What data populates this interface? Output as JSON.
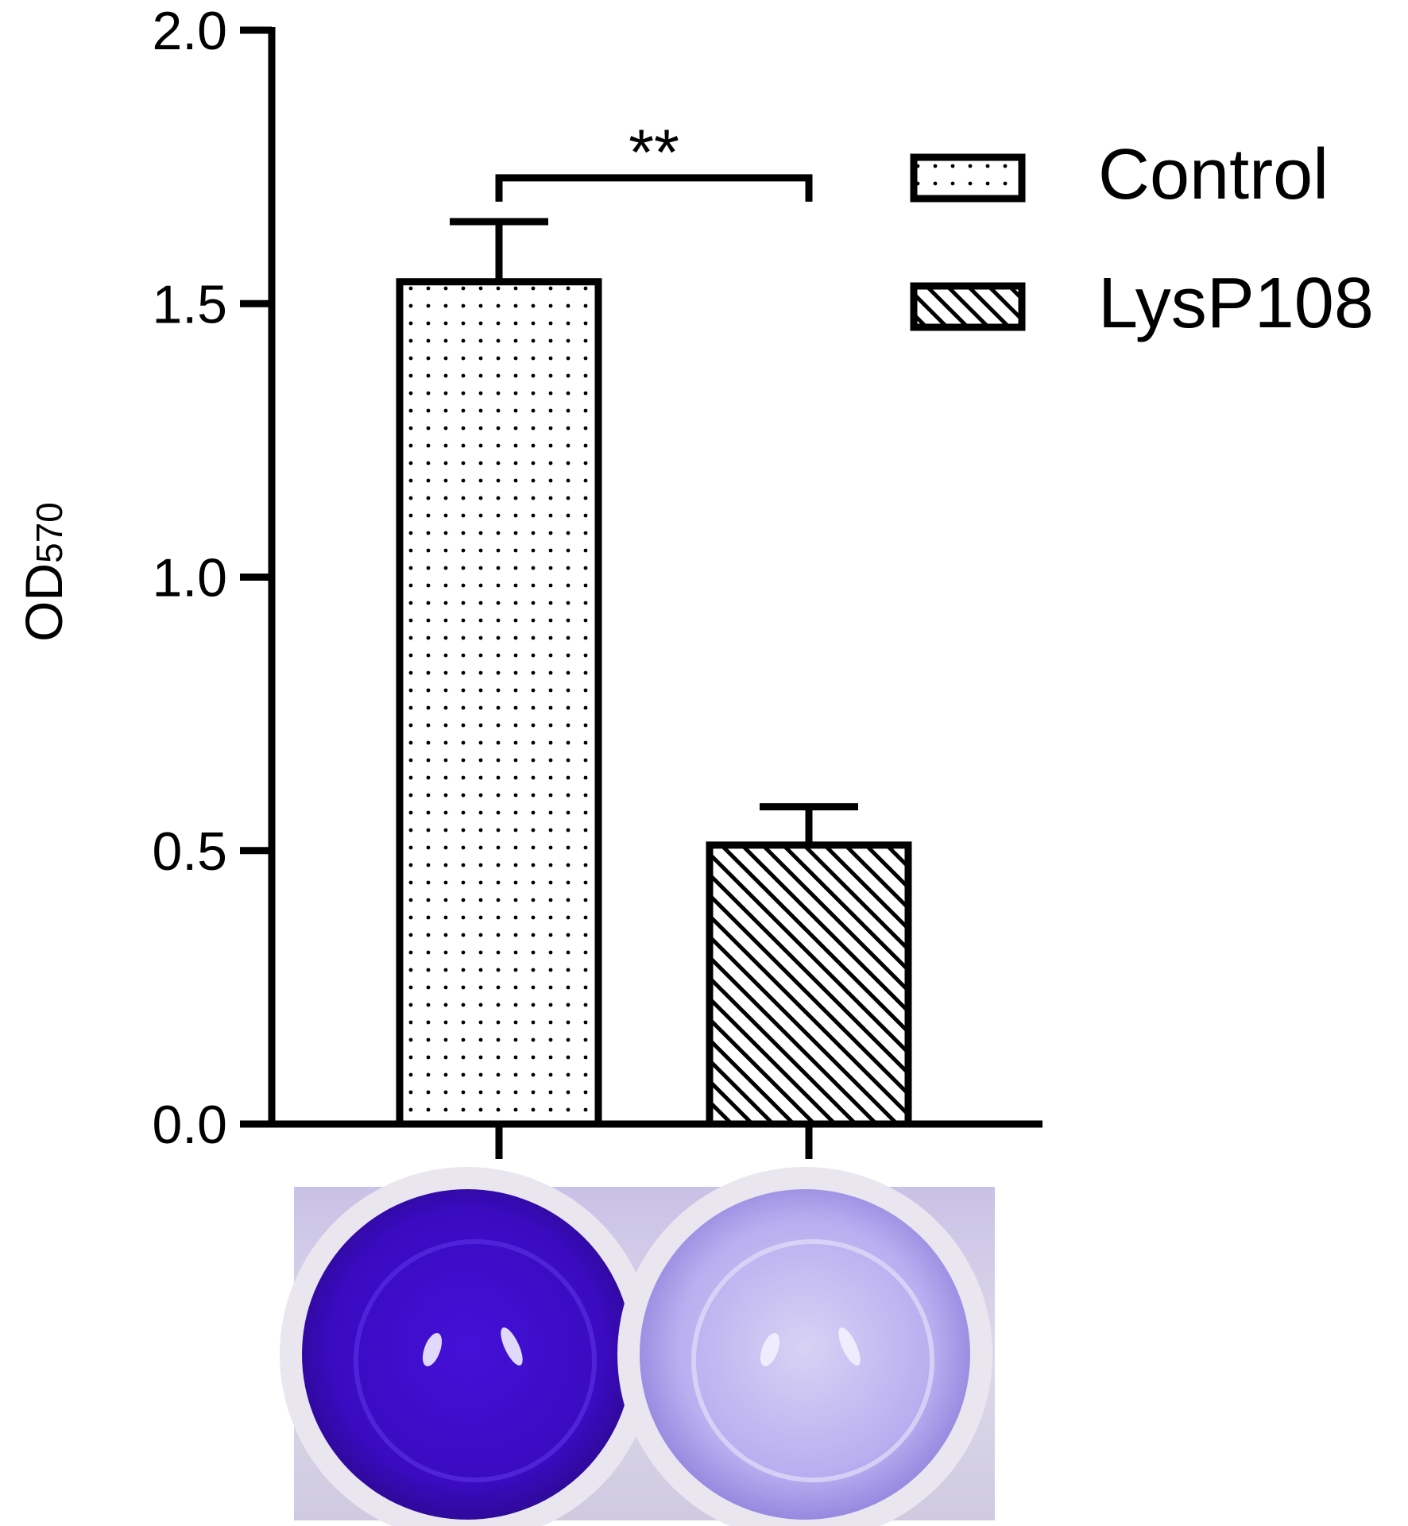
{
  "chart_data": {
    "type": "bar",
    "categories": [
      "Control",
      "LysP108"
    ],
    "values": [
      1.54,
      0.51
    ],
    "errors": [
      0.11,
      0.07
    ],
    "ylabel_main": "OD",
    "ylabel_sub": "570",
    "ylim": [
      0,
      2.0
    ],
    "yticks": [
      "0.0",
      "0.5",
      "1.0",
      "1.5",
      "2.0"
    ],
    "grid": false,
    "legend": {
      "placement": "top-right",
      "entries": [
        {
          "label": "Control",
          "pattern": "dots"
        },
        {
          "label": "LysP108",
          "pattern": "hatch"
        }
      ]
    },
    "significance": {
      "label": "**",
      "between": [
        "Control",
        "LysP108"
      ]
    }
  },
  "photo": {
    "wells": [
      {
        "category": "Control",
        "stain": "#3a0bc0"
      },
      {
        "category": "LysP108",
        "stain": "#b9aef0"
      }
    ],
    "plate_color": "#d4cfe4"
  }
}
